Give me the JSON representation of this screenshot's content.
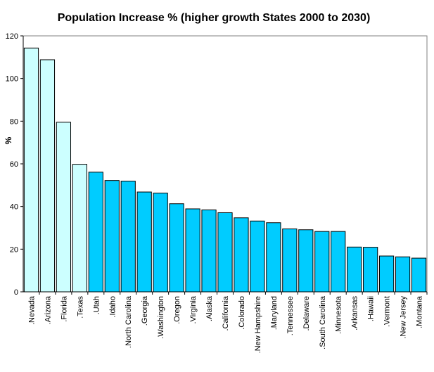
{
  "chart_data": {
    "type": "bar",
    "title": "Population Increase % (higher growth States 2000 to 2030)",
    "xlabel": "",
    "ylabel": "%",
    "ylim": [
      0,
      120
    ],
    "yticks": [
      0,
      20,
      40,
      60,
      80,
      100,
      120
    ],
    "grid": false,
    "categories": [
      ".Nevada",
      ".Arizona",
      ".Florida",
      ".Texas",
      ".Utah",
      ".Idaho",
      ".North Carolina",
      ".Georgia",
      ".Washington",
      ".Oregon",
      ".Virginia",
      ".Alaska",
      ".California",
      ".Colorado",
      ".New Hampshire",
      ".Maryland",
      ".Tennessee",
      ".Delaware",
      ".South Carolina",
      ".Minnesota",
      ".Arkansas",
      ".Hawaii",
      ".Vermont",
      ".New Jersey",
      ".Montana"
    ],
    "values": [
      114.3,
      108.8,
      79.5,
      59.8,
      56.1,
      52.2,
      51.9,
      46.8,
      46.3,
      41.3,
      38.9,
      38.4,
      37.1,
      34.7,
      33.2,
      32.4,
      29.5,
      29.1,
      28.3,
      28.3,
      21.0,
      20.9,
      16.8,
      16.4,
      15.8
    ],
    "colors": {
      "highlight": "#ccffff",
      "normal": "#00ccff",
      "outline": "#000000"
    },
    "highlight_count": 4
  }
}
